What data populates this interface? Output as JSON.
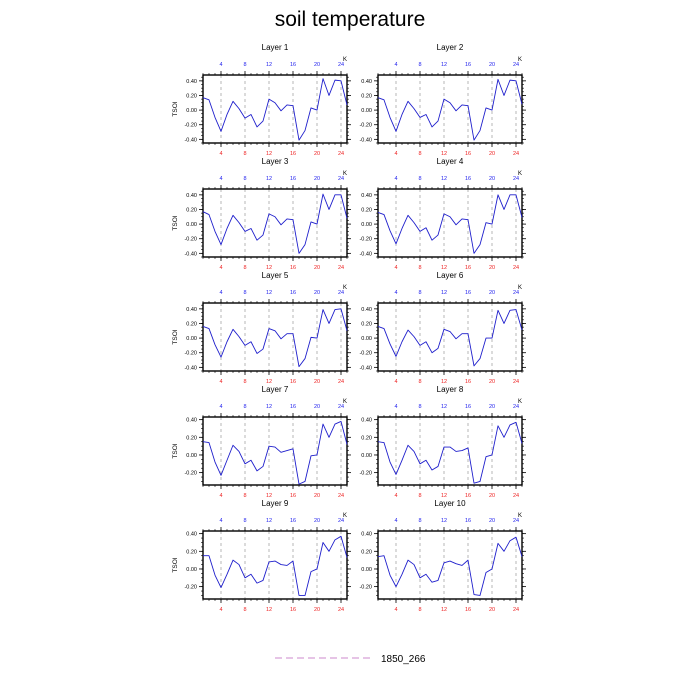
{
  "figure_title": "soil temperature",
  "colors": {
    "line": "#1f1fcc",
    "top_ticks": "#2222ee",
    "bottom_ticks": "#ee2222",
    "legend_line": "#cc88cc",
    "vline": "#999999"
  },
  "legend": {
    "label": "1850_266"
  },
  "chart_data": [
    {
      "type": "line",
      "title": "Layer 1",
      "ylabel": "TSOI",
      "top_axis_unit": "K",
      "xlim": [
        1,
        25
      ],
      "ylim": [
        -0.45,
        0.48
      ],
      "xticks": [
        4,
        8,
        12,
        16,
        20,
        24
      ],
      "yticks": [
        -0.4,
        -0.2,
        0.0,
        0.2,
        0.4
      ],
      "ytick_labels": [
        "-0.40",
        "-0.20",
        "0.00",
        "0.20",
        "0.40"
      ],
      "vlines": [
        4,
        8,
        12,
        16,
        20,
        24
      ],
      "series": [
        {
          "name": "1850_266",
          "x": [
            1,
            2,
            3,
            4,
            5,
            6,
            7,
            8,
            9,
            10,
            11,
            12,
            13,
            14,
            15,
            16,
            17,
            18,
            19,
            20,
            21,
            22,
            23,
            24,
            25
          ],
          "values": [
            0.17,
            0.14,
            -0.1,
            -0.29,
            -0.06,
            0.12,
            0.02,
            -0.11,
            -0.06,
            -0.23,
            -0.15,
            0.15,
            0.1,
            -0.01,
            0.07,
            0.06,
            -0.41,
            -0.28,
            0.03,
            0.0,
            0.43,
            0.2,
            0.41,
            0.4,
            0.07
          ]
        }
      ]
    },
    {
      "type": "line",
      "title": "Layer 2",
      "ylabel": "",
      "top_axis_unit": "K",
      "xlim": [
        1,
        25
      ],
      "ylim": [
        -0.45,
        0.48
      ],
      "xticks": [
        4,
        8,
        12,
        16,
        20,
        24
      ],
      "yticks": [
        -0.4,
        -0.2,
        0.0,
        0.2,
        0.4
      ],
      "ytick_labels": [
        "-0.40",
        "-0.20",
        "0.00",
        "0.20",
        "0.40"
      ],
      "vlines": [
        4,
        8,
        12,
        16,
        20,
        24
      ],
      "series": [
        {
          "name": "1850_266",
          "x": [
            1,
            2,
            3,
            4,
            5,
            6,
            7,
            8,
            9,
            10,
            11,
            12,
            13,
            14,
            15,
            16,
            17,
            18,
            19,
            20,
            21,
            22,
            23,
            24,
            25
          ],
          "values": [
            0.17,
            0.14,
            -0.1,
            -0.29,
            -0.06,
            0.12,
            0.02,
            -0.1,
            -0.06,
            -0.23,
            -0.15,
            0.15,
            0.1,
            -0.01,
            0.07,
            0.06,
            -0.41,
            -0.28,
            0.03,
            0.0,
            0.42,
            0.2,
            0.41,
            0.4,
            0.08
          ]
        }
      ]
    },
    {
      "type": "line",
      "title": "Layer 3",
      "ylabel": "TSOI",
      "top_axis_unit": "K",
      "xlim": [
        1,
        25
      ],
      "ylim": [
        -0.45,
        0.48
      ],
      "xticks": [
        4,
        8,
        12,
        16,
        20,
        24
      ],
      "yticks": [
        -0.4,
        -0.2,
        0.0,
        0.2,
        0.4
      ],
      "ytick_labels": [
        "-0.40",
        "-0.20",
        "0.00",
        "0.20",
        "0.40"
      ],
      "vlines": [
        4,
        8,
        12,
        16,
        20,
        24
      ],
      "series": [
        {
          "name": "1850_266",
          "x": [
            1,
            2,
            3,
            4,
            5,
            6,
            7,
            8,
            9,
            10,
            11,
            12,
            13,
            14,
            15,
            16,
            17,
            18,
            19,
            20,
            21,
            22,
            23,
            24,
            25
          ],
          "values": [
            0.17,
            0.13,
            -0.1,
            -0.28,
            -0.06,
            0.12,
            0.02,
            -0.1,
            -0.06,
            -0.22,
            -0.15,
            0.14,
            0.1,
            -0.01,
            0.07,
            0.06,
            -0.4,
            -0.28,
            0.03,
            0.0,
            0.41,
            0.2,
            0.4,
            0.4,
            0.08
          ]
        }
      ]
    },
    {
      "type": "line",
      "title": "Layer 4",
      "ylabel": "",
      "top_axis_unit": "K",
      "xlim": [
        1,
        25
      ],
      "ylim": [
        -0.45,
        0.48
      ],
      "xticks": [
        4,
        8,
        12,
        16,
        20,
        24
      ],
      "yticks": [
        -0.4,
        -0.2,
        0.0,
        0.2,
        0.4
      ],
      "ytick_labels": [
        "-0.40",
        "-0.20",
        "0.00",
        "0.20",
        "0.40"
      ],
      "vlines": [
        4,
        8,
        12,
        16,
        20,
        24
      ],
      "series": [
        {
          "name": "1850_266",
          "x": [
            1,
            2,
            3,
            4,
            5,
            6,
            7,
            8,
            9,
            10,
            11,
            12,
            13,
            14,
            15,
            16,
            17,
            18,
            19,
            20,
            21,
            22,
            23,
            24,
            25
          ],
          "values": [
            0.16,
            0.13,
            -0.09,
            -0.27,
            -0.06,
            0.12,
            0.02,
            -0.1,
            -0.05,
            -0.22,
            -0.15,
            0.14,
            0.1,
            -0.01,
            0.07,
            0.06,
            -0.4,
            -0.28,
            0.02,
            0.0,
            0.4,
            0.2,
            0.4,
            0.4,
            0.09
          ]
        }
      ]
    },
    {
      "type": "line",
      "title": "Layer 5",
      "ylabel": "TSOI",
      "top_axis_unit": "K",
      "xlim": [
        1,
        25
      ],
      "ylim": [
        -0.45,
        0.48
      ],
      "xticks": [
        4,
        8,
        12,
        16,
        20,
        24
      ],
      "yticks": [
        -0.4,
        -0.2,
        0.0,
        0.2,
        0.4
      ],
      "ytick_labels": [
        "-0.40",
        "-0.20",
        "0.00",
        "0.20",
        "0.40"
      ],
      "vlines": [
        4,
        8,
        12,
        16,
        20,
        24
      ],
      "series": [
        {
          "name": "1850_266",
          "x": [
            1,
            2,
            3,
            4,
            5,
            6,
            7,
            8,
            9,
            10,
            11,
            12,
            13,
            14,
            15,
            16,
            17,
            18,
            19,
            20,
            21,
            22,
            23,
            24,
            25
          ],
          "values": [
            0.16,
            0.13,
            -0.09,
            -0.26,
            -0.05,
            0.12,
            0.02,
            -0.1,
            -0.05,
            -0.21,
            -0.15,
            0.13,
            0.1,
            -0.01,
            0.06,
            0.06,
            -0.39,
            -0.28,
            0.01,
            0.0,
            0.39,
            0.2,
            0.39,
            0.4,
            0.1
          ]
        }
      ]
    },
    {
      "type": "line",
      "title": "Layer 6",
      "ylabel": "",
      "top_axis_unit": "K",
      "xlim": [
        1,
        25
      ],
      "ylim": [
        -0.45,
        0.48
      ],
      "xticks": [
        4,
        8,
        12,
        16,
        20,
        24
      ],
      "yticks": [
        -0.4,
        -0.2,
        0.0,
        0.2,
        0.4
      ],
      "ytick_labels": [
        "-0.40",
        "-0.20",
        "0.00",
        "0.20",
        "0.40"
      ],
      "vlines": [
        4,
        8,
        12,
        16,
        20,
        24
      ],
      "series": [
        {
          "name": "1850_266",
          "x": [
            1,
            2,
            3,
            4,
            5,
            6,
            7,
            8,
            9,
            10,
            11,
            12,
            13,
            14,
            15,
            16,
            17,
            18,
            19,
            20,
            21,
            22,
            23,
            24,
            25
          ],
          "values": [
            0.16,
            0.13,
            -0.08,
            -0.25,
            -0.05,
            0.11,
            0.02,
            -0.1,
            -0.05,
            -0.2,
            -0.14,
            0.12,
            0.09,
            -0.01,
            0.06,
            0.06,
            -0.38,
            -0.28,
            0.0,
            0.0,
            0.38,
            0.2,
            0.38,
            0.39,
            0.11
          ]
        }
      ]
    },
    {
      "type": "line",
      "title": "Layer 7",
      "ylabel": "TSOI",
      "top_axis_unit": "K",
      "xlim": [
        1,
        25
      ],
      "ylim": [
        -0.34,
        0.43
      ],
      "xticks": [
        4,
        8,
        12,
        16,
        20,
        24
      ],
      "yticks": [
        -0.2,
        0.0,
        0.2,
        0.4
      ],
      "ytick_labels": [
        "-0.20",
        "0.00",
        "0.20",
        "0.40"
      ],
      "vlines": [
        4,
        8,
        12,
        16,
        20,
        24
      ],
      "series": [
        {
          "name": "1850_266",
          "x": [
            1,
            2,
            3,
            4,
            5,
            6,
            7,
            8,
            9,
            10,
            11,
            12,
            13,
            14,
            15,
            16,
            17,
            18,
            19,
            20,
            21,
            22,
            23,
            24,
            25
          ],
          "values": [
            0.15,
            0.14,
            -0.08,
            -0.23,
            -0.06,
            0.11,
            0.04,
            -0.1,
            -0.06,
            -0.18,
            -0.13,
            0.1,
            0.09,
            0.03,
            0.05,
            0.07,
            -0.33,
            -0.3,
            -0.01,
            0.0,
            0.35,
            0.2,
            0.35,
            0.38,
            0.12
          ]
        }
      ]
    },
    {
      "type": "line",
      "title": "Layer 8",
      "ylabel": "",
      "top_axis_unit": "K",
      "xlim": [
        1,
        25
      ],
      "ylim": [
        -0.34,
        0.43
      ],
      "xticks": [
        4,
        8,
        12,
        16,
        20,
        24
      ],
      "yticks": [
        -0.2,
        0.0,
        0.2,
        0.4
      ],
      "ytick_labels": [
        "-0.20",
        "0.00",
        "0.20",
        "0.40"
      ],
      "vlines": [
        4,
        8,
        12,
        16,
        20,
        24
      ],
      "series": [
        {
          "name": "1850_266",
          "x": [
            1,
            2,
            3,
            4,
            5,
            6,
            7,
            8,
            9,
            10,
            11,
            12,
            13,
            14,
            15,
            16,
            17,
            18,
            19,
            20,
            21,
            22,
            23,
            24,
            25
          ],
          "values": [
            0.15,
            0.14,
            -0.08,
            -0.22,
            -0.06,
            0.11,
            0.04,
            -0.1,
            -0.06,
            -0.17,
            -0.13,
            0.09,
            0.09,
            0.04,
            0.05,
            0.08,
            -0.32,
            -0.3,
            -0.02,
            0.0,
            0.33,
            0.2,
            0.34,
            0.37,
            0.13
          ]
        }
      ]
    },
    {
      "type": "line",
      "title": "Layer 9",
      "ylabel": "TSOI",
      "top_axis_unit": "K",
      "xlim": [
        1,
        25
      ],
      "ylim": [
        -0.34,
        0.43
      ],
      "xticks": [
        4,
        8,
        12,
        16,
        20,
        24
      ],
      "yticks": [
        -0.2,
        0.0,
        0.2,
        0.4
      ],
      "ytick_labels": [
        "-0.20",
        "0.00",
        "0.20",
        "0.40"
      ],
      "vlines": [
        4,
        8,
        12,
        16,
        20,
        24
      ],
      "series": [
        {
          "name": "1850_266",
          "x": [
            1,
            2,
            3,
            4,
            5,
            6,
            7,
            8,
            9,
            10,
            11,
            12,
            13,
            14,
            15,
            16,
            17,
            18,
            19,
            20,
            21,
            22,
            23,
            24,
            25
          ],
          "values": [
            0.15,
            0.15,
            -0.07,
            -0.21,
            -0.06,
            0.1,
            0.05,
            -0.1,
            -0.06,
            -0.16,
            -0.13,
            0.08,
            0.09,
            0.05,
            0.04,
            0.09,
            -0.3,
            -0.3,
            -0.03,
            0.0,
            0.3,
            0.2,
            0.33,
            0.37,
            0.13
          ]
        }
      ]
    },
    {
      "type": "line",
      "title": "Layer 10",
      "ylabel": "",
      "top_axis_unit": "K",
      "xlim": [
        1,
        25
      ],
      "ylim": [
        -0.34,
        0.43
      ],
      "xticks": [
        4,
        8,
        12,
        16,
        20,
        24
      ],
      "yticks": [
        -0.2,
        0.0,
        0.2,
        0.4
      ],
      "ytick_labels": [
        "-0.20",
        "0.00",
        "0.20",
        "0.40"
      ],
      "vlines": [
        4,
        8,
        12,
        16,
        20,
        24
      ],
      "series": [
        {
          "name": "1850_266",
          "x": [
            1,
            2,
            3,
            4,
            5,
            6,
            7,
            8,
            9,
            10,
            11,
            12,
            13,
            14,
            15,
            16,
            17,
            18,
            19,
            20,
            21,
            22,
            23,
            24,
            25
          ],
          "values": [
            0.14,
            0.15,
            -0.07,
            -0.2,
            -0.06,
            0.1,
            0.05,
            -0.1,
            -0.06,
            -0.15,
            -0.13,
            0.07,
            0.09,
            0.06,
            0.04,
            0.1,
            -0.29,
            -0.3,
            -0.04,
            0.0,
            0.29,
            0.2,
            0.32,
            0.36,
            0.14
          ]
        }
      ]
    }
  ]
}
